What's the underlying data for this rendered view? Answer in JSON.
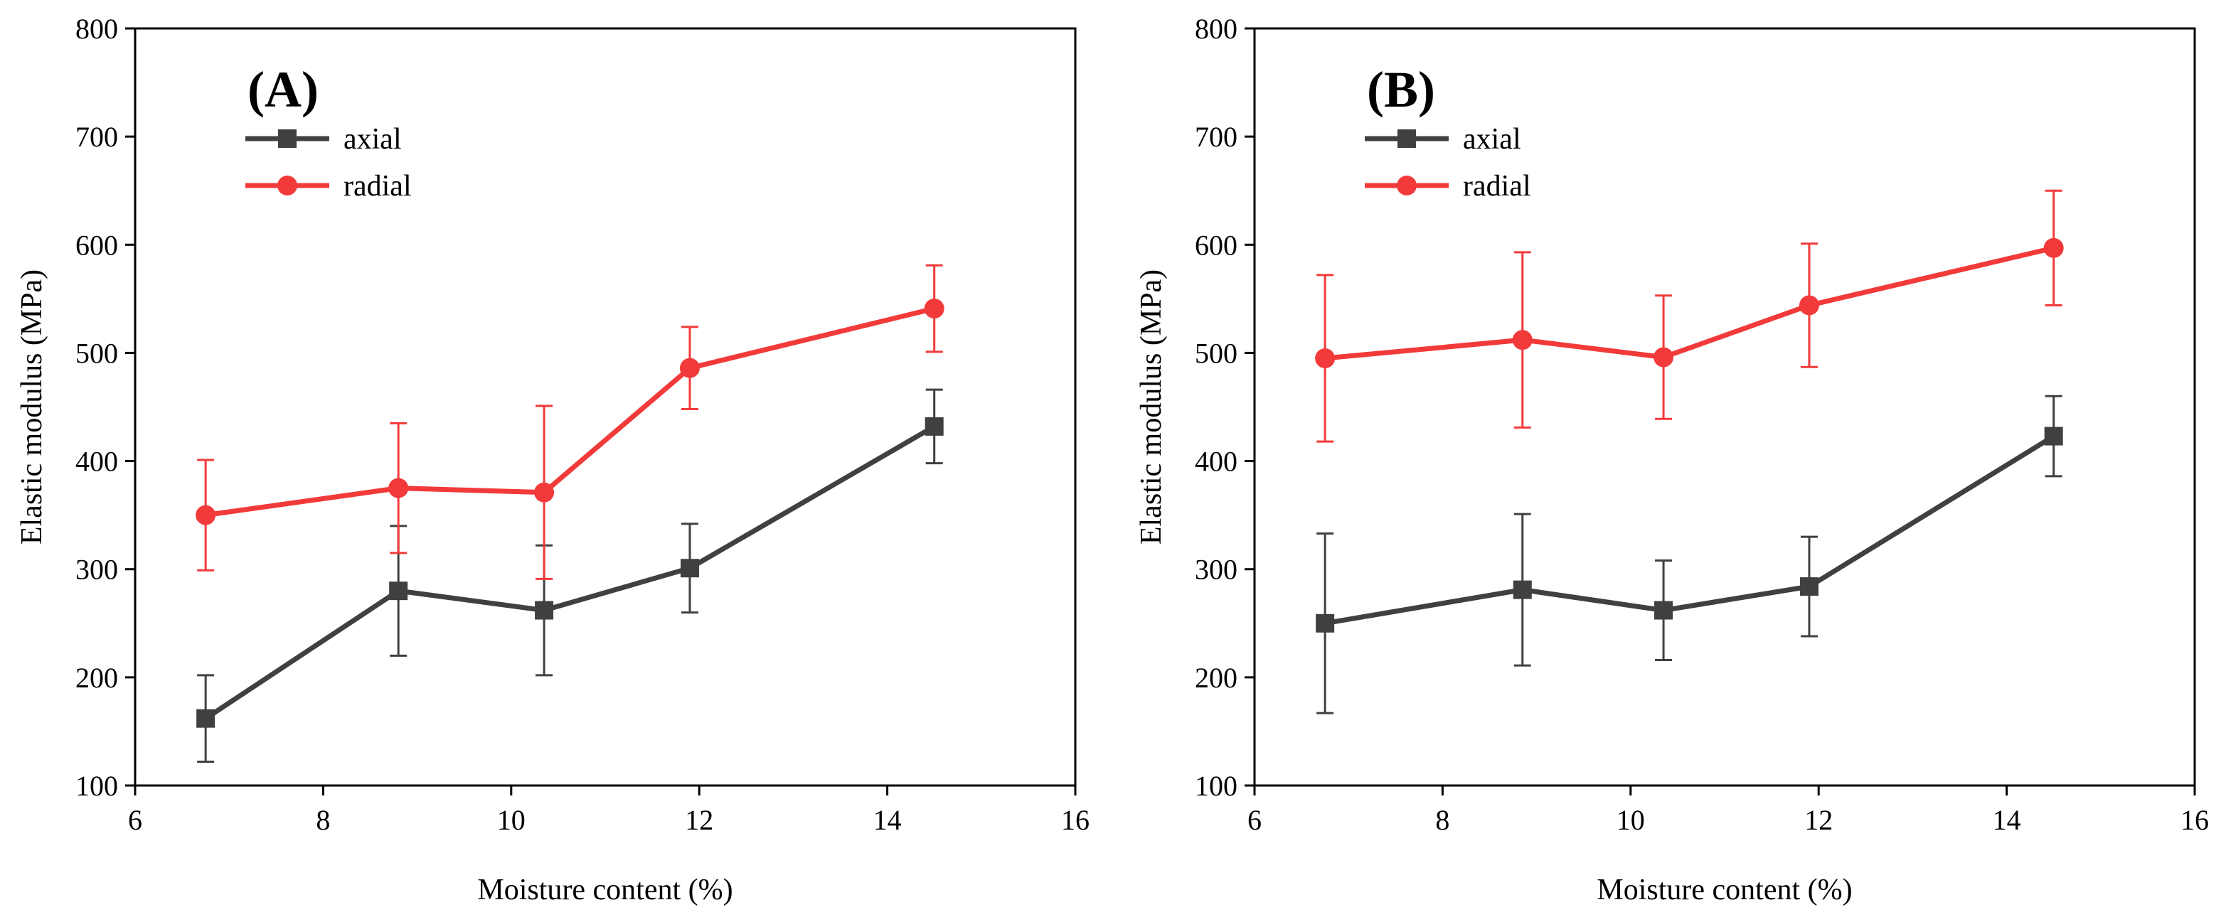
{
  "chart_data": [
    {
      "type": "line",
      "panel_label": "(A)",
      "xlabel": "Moisture content (%)",
      "ylabel": "Elastic modulus (MPa)",
      "xlim": [
        6,
        16
      ],
      "ylim": [
        100,
        800
      ],
      "xticks": [
        6,
        8,
        10,
        12,
        14,
        16
      ],
      "yticks": [
        100,
        200,
        300,
        400,
        500,
        600,
        700,
        800
      ],
      "legend_position": "top-left",
      "series": [
        {
          "name": "axial",
          "color": "#404040",
          "marker": "square",
          "x": [
            6.75,
            8.8,
            10.35,
            11.9,
            14.5
          ],
          "y": [
            162,
            280,
            262,
            301,
            432
          ],
          "err": [
            40,
            60,
            60,
            41,
            34
          ]
        },
        {
          "name": "radial",
          "color": "#f23a3a",
          "marker": "circle",
          "x": [
            6.75,
            8.8,
            10.35,
            11.9,
            14.5
          ],
          "y": [
            350,
            375,
            371,
            486,
            541
          ],
          "err": [
            51,
            60,
            80,
            38,
            40
          ]
        }
      ]
    },
    {
      "type": "line",
      "panel_label": "(B)",
      "xlabel": "Moisture content (%)",
      "ylabel": "Elastic modulus (MPa)",
      "xlim": [
        6,
        16
      ],
      "ylim": [
        100,
        800
      ],
      "xticks": [
        6,
        8,
        10,
        12,
        14,
        16
      ],
      "yticks": [
        100,
        200,
        300,
        400,
        500,
        600,
        700,
        800
      ],
      "legend_position": "top-left",
      "series": [
        {
          "name": "axial",
          "color": "#404040",
          "marker": "square",
          "x": [
            6.75,
            8.85,
            10.35,
            11.9,
            14.5
          ],
          "y": [
            250,
            281,
            262,
            284,
            423
          ],
          "err": [
            83,
            70,
            46,
            46,
            37
          ]
        },
        {
          "name": "radial",
          "color": "#f23a3a",
          "marker": "circle",
          "x": [
            6.75,
            8.85,
            10.35,
            11.9,
            14.5
          ],
          "y": [
            495,
            512,
            496,
            544,
            597
          ],
          "err": [
            77,
            81,
            57,
            57,
            53
          ]
        }
      ]
    }
  ]
}
